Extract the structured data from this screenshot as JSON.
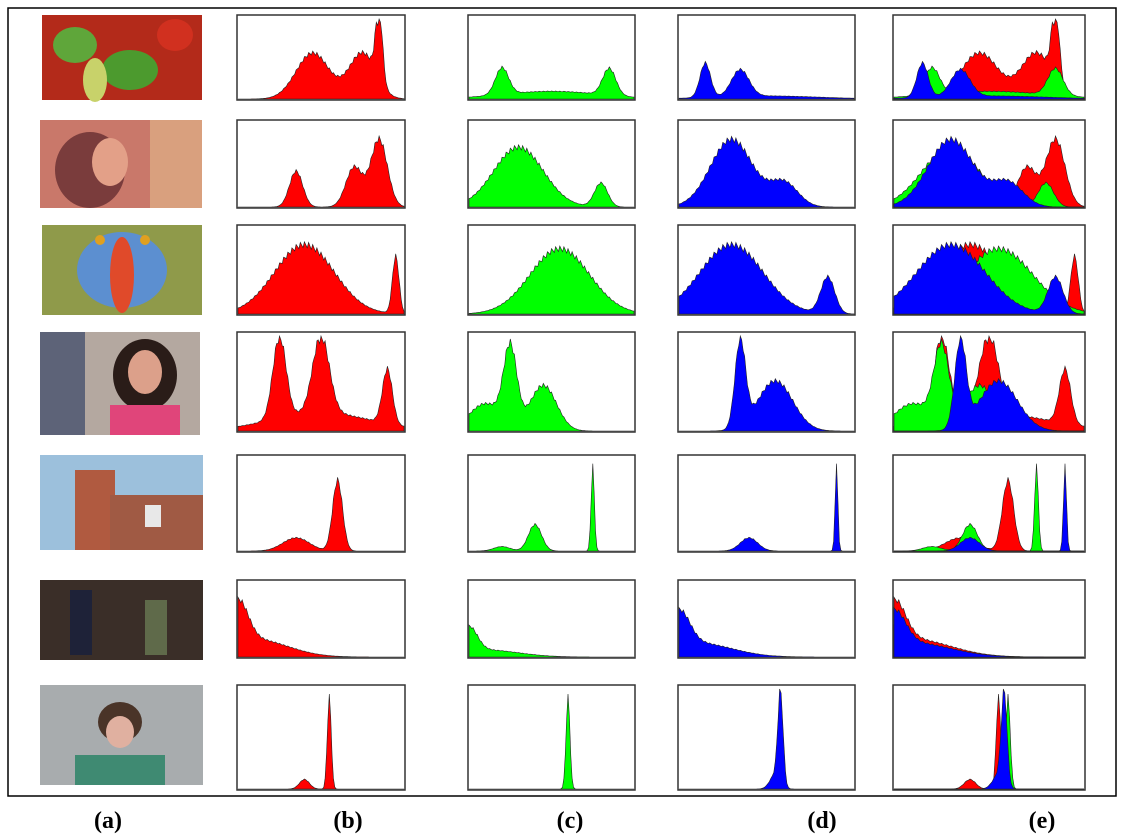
{
  "figure": {
    "panel_labels": [
      "(a)",
      "(b)",
      "(c)",
      "(d)",
      "(e)"
    ]
  }
}
